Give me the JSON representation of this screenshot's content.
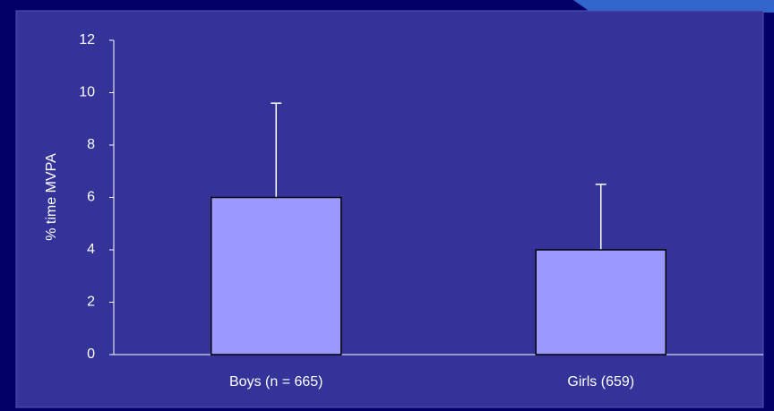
{
  "chart_data": {
    "type": "bar",
    "y_label": "% time MVPA",
    "categories": [
      "Boys (n = 665)",
      "Girls (659)"
    ],
    "values": [
      6,
      4
    ],
    "errors": [
      3.6,
      2.5
    ],
    "color": "#9999ff",
    "ylim": [
      0,
      12
    ],
    "yticks": [
      0,
      2,
      4,
      6,
      8,
      10,
      12
    ],
    "grid": false
  }
}
